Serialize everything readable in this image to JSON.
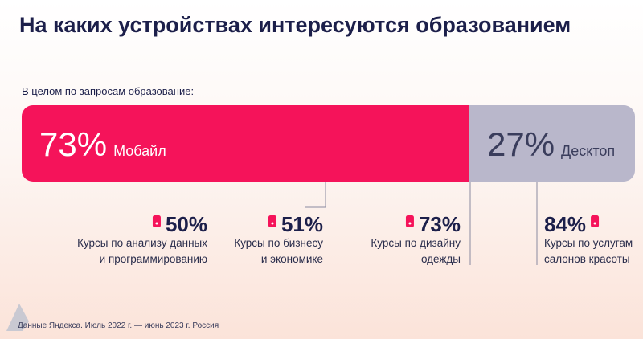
{
  "chart_data": {
    "type": "stacked-bar",
    "title": "На каких устройствах интересуются образованием",
    "subtitle": "В целом по запросам образование:",
    "xlim": [
      0,
      100
    ],
    "series": [
      {
        "name": "Мобайл",
        "color": "#f5135a",
        "values": [
          73
        ],
        "value_labels": [
          "73%"
        ]
      },
      {
        "name": "Десктоп",
        "color": "#b9b7cb",
        "values": [
          27
        ],
        "value_labels": [
          "27%"
        ]
      }
    ],
    "callouts": [
      {
        "value": 50,
        "value_label": "50%",
        "text": [
          "Курсы по анализу данных",
          "и программированию"
        ]
      },
      {
        "value": 51,
        "value_label": "51%",
        "text": [
          "Курсы по бизнесу",
          "и экономике"
        ]
      },
      {
        "value": 73,
        "value_label": "73%",
        "text": [
          "Курсы по дизайну",
          "одежды"
        ]
      },
      {
        "value": 84,
        "value_label": "84%",
        "text": [
          "Курсы по услугам",
          "салонов красоты"
        ]
      }
    ],
    "source": "Данные Яндекса. Июль 2022 г. — июнь 2023 г. Россия"
  }
}
